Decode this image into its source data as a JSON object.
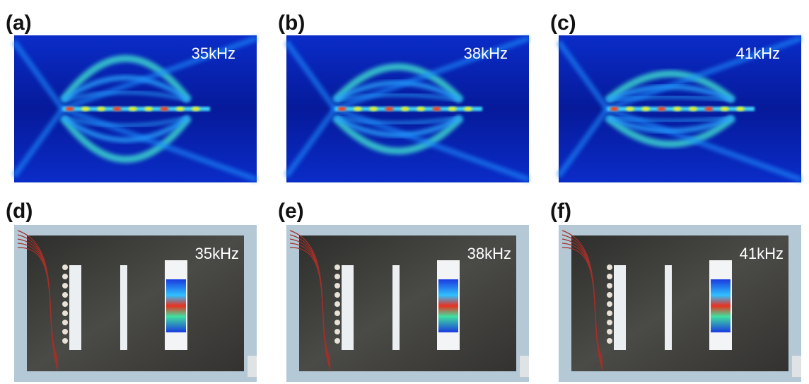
{
  "panels": [
    {
      "label": "(a)",
      "frequency": "35kHz"
    },
    {
      "label": "(b)",
      "frequency": "38kHz"
    },
    {
      "label": "(c)",
      "frequency": "41kHz"
    },
    {
      "label": "(d)",
      "frequency": "35kHz"
    },
    {
      "label": "(e)",
      "frequency": "38kHz"
    },
    {
      "label": "(f)",
      "frequency": "41kHz"
    }
  ]
}
